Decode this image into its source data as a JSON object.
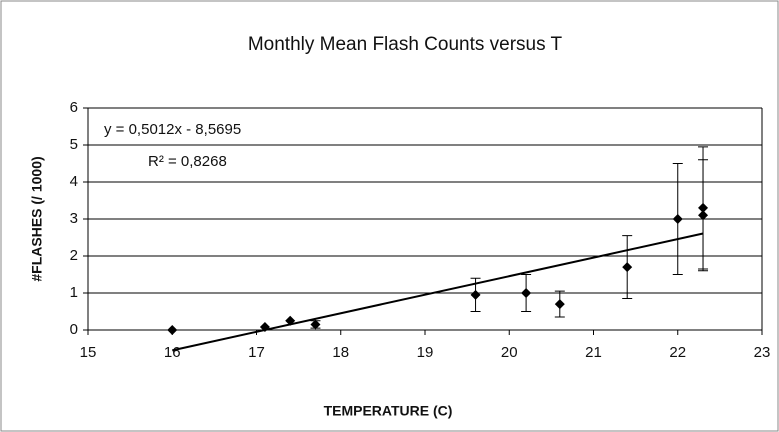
{
  "chart_data": {
    "type": "scatter",
    "title": "Monthly Mean Flash Counts versus T",
    "x_label": "TEMPERATURE (C)",
    "y_label": "#FLASHES (/ 1000)",
    "annotations": [
      "y = 0,5012x - 8,5695",
      "R² = 0,8268"
    ],
    "series": [
      {
        "color": "#000000",
        "x": [
          16.0,
          17.1,
          17.4,
          17.7,
          19.6,
          20.2,
          20.6,
          21.4,
          22.0,
          22.3,
          22.3
        ],
        "values": [
          0.0,
          0.08,
          0.25,
          0.15,
          0.95,
          1.0,
          0.7,
          1.7,
          3.0,
          3.1,
          3.3
        ],
        "errors": [
          0.0,
          0.0,
          0.0,
          0.1,
          0.45,
          0.5,
          0.35,
          0.85,
          1.5,
          1.5,
          1.65
        ]
      }
    ],
    "trendline": {
      "slope": 0.5012,
      "intercept": -8.5695
    },
    "xlim": [
      15,
      23
    ],
    "xticks": [
      15,
      16,
      17,
      18,
      19,
      20,
      21,
      22,
      23
    ],
    "ylim": [
      0,
      6
    ],
    "yticks": [
      0,
      1,
      2,
      3,
      4,
      5,
      6
    ],
    "grid": true
  }
}
